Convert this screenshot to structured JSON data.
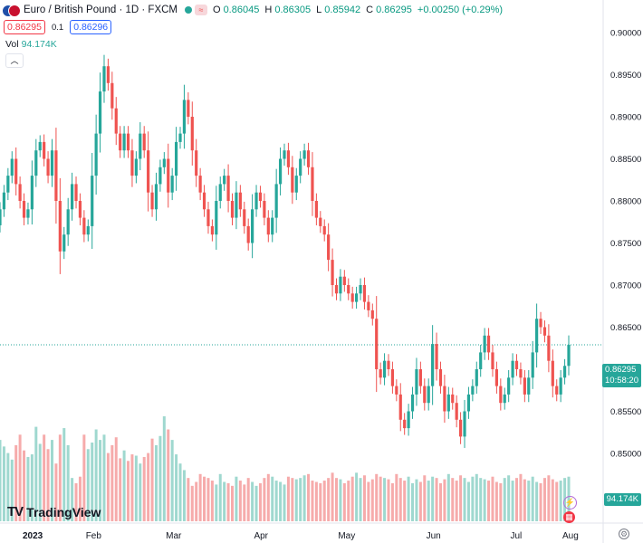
{
  "header": {
    "symbol": "Euro / British Pound · 1D · FXCM",
    "o_label": "O",
    "o": "0.86045",
    "h_label": "H",
    "h": "0.86305",
    "l_label": "L",
    "l": "0.85942",
    "c_label": "C",
    "c": "0.86295",
    "change": "+0.00250 (+0.29%)"
  },
  "trade": {
    "sell": "0.86295",
    "spread": "0.1",
    "buy": "0.86296"
  },
  "volume": {
    "label": "Vol",
    "value": "94.174K"
  },
  "price_badge": {
    "price": "0.86295",
    "countdown": "10:58:20"
  },
  "volume_badge": "94.174K",
  "logo": {
    "mark": "TV",
    "text": "TradingView"
  },
  "colors": {
    "up": "#26a69a",
    "down": "#ef5350",
    "vol_up": "#9fd8cf",
    "vol_down": "#f6abab",
    "accent": "#2962ff"
  },
  "chart_data": {
    "type": "candlestick",
    "series_name": "Euro / British Pound",
    "x": {
      "ticks": [
        "2023",
        "Feb",
        "Mar",
        "Apr",
        "May",
        "Jun",
        "Jul",
        "Aug"
      ]
    },
    "y": {
      "ticks": [
        "0.90000",
        "0.89500",
        "0.89000",
        "0.88500",
        "0.88000",
        "0.87500",
        "0.87000",
        "0.86500",
        "0.86000",
        "0.85500",
        "0.85000"
      ],
      "range": [
        0.8445,
        0.9037
      ]
    },
    "start_close": 0.8771,
    "closes": [
      0.879,
      0.881,
      0.883,
      0.885,
      0.882,
      0.88,
      0.878,
      0.879,
      0.883,
      0.886,
      0.887,
      0.885,
      0.883,
      0.886,
      0.88,
      0.874,
      0.876,
      0.879,
      0.882,
      0.88,
      0.878,
      0.876,
      0.877,
      0.883,
      0.888,
      0.893,
      0.896,
      0.894,
      0.891,
      0.888,
      0.886,
      0.888,
      0.886,
      0.883,
      0.885,
      0.888,
      0.886,
      0.881,
      0.879,
      0.882,
      0.884,
      0.885,
      0.881,
      0.883,
      0.887,
      0.888,
      0.892,
      0.89,
      0.886,
      0.883,
      0.881,
      0.879,
      0.877,
      0.876,
      0.88,
      0.882,
      0.883,
      0.88,
      0.878,
      0.881,
      0.879,
      0.877,
      0.875,
      0.879,
      0.881,
      0.88,
      0.878,
      0.876,
      0.878,
      0.882,
      0.885,
      0.886,
      0.884,
      0.881,
      0.883,
      0.885,
      0.886,
      0.884,
      0.88,
      0.878,
      0.877,
      0.876,
      0.873,
      0.87,
      0.869,
      0.871,
      0.87,
      0.869,
      0.868,
      0.869,
      0.87,
      0.868,
      0.867,
      0.866,
      0.86,
      0.859,
      0.861,
      0.86,
      0.858,
      0.857,
      0.854,
      0.853,
      0.855,
      0.857,
      0.86,
      0.858,
      0.856,
      0.858,
      0.863,
      0.86,
      0.858,
      0.855,
      0.857,
      0.856,
      0.854,
      0.852,
      0.855,
      0.857,
      0.858,
      0.86,
      0.862,
      0.864,
      0.862,
      0.86,
      0.858,
      0.856,
      0.857,
      0.859,
      0.861,
      0.86,
      0.859,
      0.857,
      0.859,
      0.862,
      0.866,
      0.865,
      0.864,
      0.861,
      0.858,
      0.857,
      0.859,
      0.8604,
      0.8629
    ],
    "volume": {
      "label": "Vol",
      "last": "94.174K",
      "values": [
        0.62,
        0.57,
        0.52,
        0.47,
        0.58,
        0.66,
        0.54,
        0.49,
        0.51,
        0.72,
        0.59,
        0.66,
        0.55,
        0.62,
        0.44,
        0.66,
        0.71,
        0.58,
        0.33,
        0.29,
        0.34,
        0.66,
        0.55,
        0.6,
        0.7,
        0.62,
        0.66,
        0.52,
        0.58,
        0.64,
        0.48,
        0.54,
        0.46,
        0.51,
        0.5,
        0.44,
        0.49,
        0.52,
        0.63,
        0.58,
        0.65,
        0.8,
        0.7,
        0.62,
        0.51,
        0.44,
        0.39,
        0.33,
        0.27,
        0.3,
        0.36,
        0.34,
        0.33,
        0.31,
        0.28,
        0.36,
        0.3,
        0.29,
        0.27,
        0.34,
        0.31,
        0.28,
        0.33,
        0.3,
        0.27,
        0.29,
        0.33,
        0.36,
        0.34,
        0.31,
        0.3,
        0.28,
        0.34,
        0.33,
        0.32,
        0.33,
        0.35,
        0.36,
        0.31,
        0.3,
        0.29,
        0.31,
        0.33,
        0.37,
        0.33,
        0.32,
        0.29,
        0.31,
        0.34,
        0.37,
        0.33,
        0.35,
        0.3,
        0.32,
        0.36,
        0.34,
        0.33,
        0.32,
        0.29,
        0.36,
        0.33,
        0.31,
        0.34,
        0.29,
        0.32,
        0.3,
        0.35,
        0.31,
        0.34,
        0.33,
        0.29,
        0.32,
        0.36,
        0.33,
        0.31,
        0.35,
        0.33,
        0.3,
        0.34,
        0.36,
        0.33,
        0.32,
        0.31,
        0.34,
        0.3,
        0.29,
        0.33,
        0.35,
        0.31,
        0.33,
        0.36,
        0.32,
        0.31,
        0.34,
        0.3,
        0.29,
        0.33,
        0.35,
        0.32,
        0.3,
        0.31,
        0.33,
        0.34
      ]
    }
  }
}
